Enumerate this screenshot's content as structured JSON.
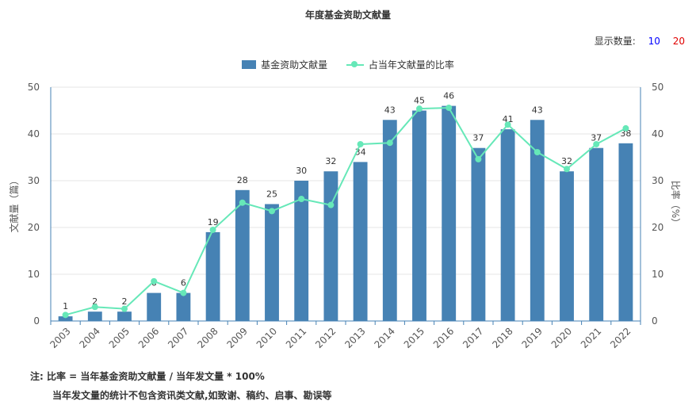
{
  "title": "年度基金资助文献量",
  "count_selector": {
    "label": "显示数量:",
    "options": [
      {
        "label": "10",
        "color": "#0000ff"
      },
      {
        "label": "20",
        "color": "#e00000"
      }
    ]
  },
  "legend": {
    "bar_label": "基金资助文献量",
    "line_label": "占当年文献量的比率"
  },
  "notes": {
    "line1": "注:  比率 = 当年基金资助文献量 / 当年发文量 * 100%",
    "line2": "当年发文量的统计不包含资讯类文献,如致谢、稿约、启事、勘误等"
  },
  "chart_data": {
    "type": "bar",
    "categories": [
      "2003",
      "2004",
      "2005",
      "2006",
      "2007",
      "2008",
      "2009",
      "2010",
      "2011",
      "2012",
      "2013",
      "2014",
      "2015",
      "2016",
      "2017",
      "2018",
      "2019",
      "2020",
      "2021",
      "2022"
    ],
    "series": [
      {
        "name": "基金资助文献量",
        "type": "bar",
        "color": "#4682b4",
        "values": [
          1,
          2,
          2,
          6,
          6,
          19,
          28,
          25,
          30,
          32,
          34,
          43,
          45,
          46,
          37,
          41,
          43,
          32,
          37,
          38
        ]
      },
      {
        "name": "占当年文献量的比率",
        "type": "line",
        "color": "#66e8b8",
        "values": [
          1.3,
          3.0,
          2.6,
          8.5,
          6.0,
          19.5,
          25.3,
          23.5,
          26.1,
          24.8,
          37.8,
          38.1,
          45.4,
          45.6,
          34.6,
          42.0,
          36.1,
          32.5,
          37.8,
          41.2
        ]
      }
    ],
    "ylabel": "文献量（篇）",
    "y2label": "比率（%）",
    "ylim": [
      0,
      50
    ],
    "y2lim": [
      0,
      50
    ],
    "yticks": [
      0,
      10,
      20,
      30,
      40,
      50
    ],
    "grid": true,
    "legend_position": "top-center"
  }
}
